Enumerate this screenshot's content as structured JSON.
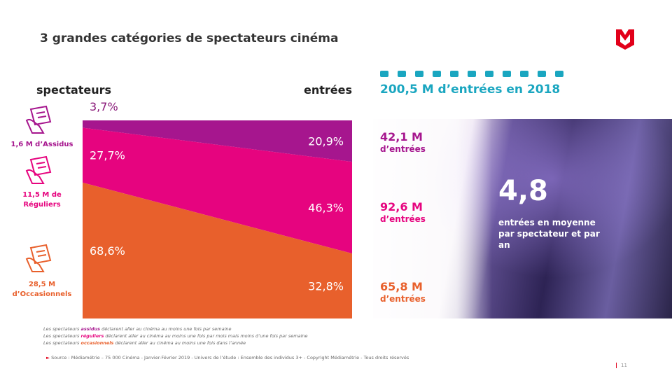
{
  "title": "3 grandes catégories de spectateurs cinéma",
  "chart_data": {
    "type": "flow",
    "categories": [
      "spectateurs",
      "entrées"
    ],
    "ylim": [
      0,
      100
    ],
    "series": [
      {
        "name": "1,6 M d’Assidus",
        "color": "#a6168e",
        "values": [
          3.7,
          20.9
        ],
        "value_labels": [
          "3,7%",
          "20,9%"
        ]
      },
      {
        "name": "11,5 M de Réguliers",
        "color": "#e6047f",
        "values": [
          27.7,
          46.3
        ],
        "value_labels": [
          "27,7%",
          "46,3%"
        ]
      },
      {
        "name": "28,5 M d’Occasionnels",
        "color": "#e8602c",
        "values": [
          68.6,
          32.8
        ],
        "value_labels": [
          "68,6%",
          "32,8%"
        ]
      }
    ]
  },
  "panel": {
    "header": "200,5 M d’entrées en 2018",
    "items": [
      {
        "amount": "42,1 M",
        "unit": "d’entrées"
      },
      {
        "amount": "92,6 M",
        "unit": "d’entrées"
      },
      {
        "amount": "65,8 M",
        "unit": "d’entrées"
      }
    ],
    "highlight": "4,8",
    "highlight_text": "entrées en moyenne par spectateur et par an"
  },
  "notes": [
    [
      "Les spectateurs ",
      "assidus",
      " déclarent aller au cinéma au moins une fois par semaine"
    ],
    [
      "Les spectateurs ",
      "réguliers",
      " déclarent aller au cinéma au moins une fois par mois mais moins d’une fois par semaine"
    ],
    [
      "Les spectateurs ",
      "occasionnels",
      " déclarent aller au cinéma au moins une fois dans l’année"
    ]
  ],
  "source": "Source : Médiamétrie – 75 000 Cinéma - Janvier-Février 2019 - Univers de l’étude : Ensemble des individus 3+ - Copyright Médiamétrie - Tous droits réservés",
  "page_number": "11"
}
